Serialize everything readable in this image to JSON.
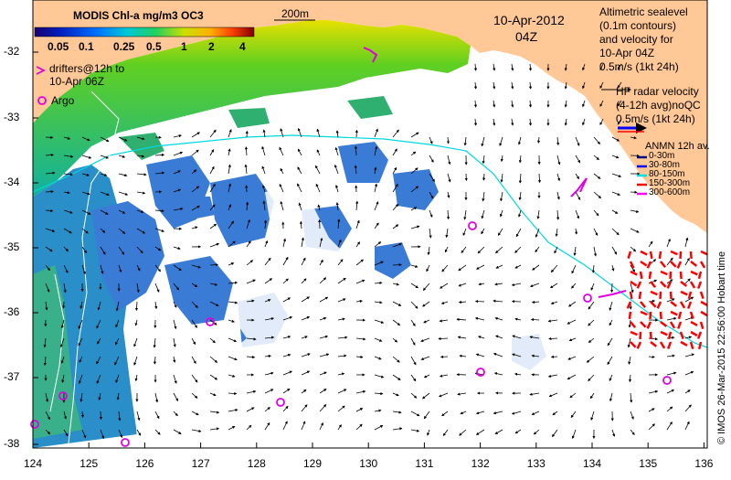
{
  "colorbar": {
    "title": "MODIS Chl-a mg/m3 OC3",
    "ticks": [
      "0.05",
      "0.1",
      "0.25",
      "0.5",
      "1",
      "2",
      "4"
    ]
  },
  "scale_bar_label": "200m",
  "date_label": "10-Apr-2012",
  "time_label": "04Z",
  "drifters_label_1": "drifters@12h to",
  "drifters_label_2": "10-Apr 06Z",
  "argo_label": "Argo",
  "altimetric_label": [
    "Altimetric sealevel",
    "(0.1m contours)",
    "and velocity for",
    "10-Apr 04Z",
    "0.5m/s (1kt 24h)"
  ],
  "hf_radar_label": [
    "HF radar velocity",
    "(4-12h avg)noQC",
    "0.5m/s (1kt 24h)"
  ],
  "anmn_legend": {
    "title": "ANMN 12h av.",
    "items": [
      {
        "label": "0-30m",
        "color": "#000080"
      },
      {
        "label": "30-80m",
        "color": "#0000ff"
      },
      {
        "label": "80-150m",
        "color": "#00e0e0"
      },
      {
        "label": "150-300m",
        "color": "#ff0000"
      },
      {
        "label": "300-600m",
        "color": "#ff00ff"
      }
    ]
  },
  "credit": "© IMOS 26-Mar-2015 22:56:00 Hobart time",
  "y_ticks": [
    "-32",
    "-33",
    "-34",
    "-35",
    "-36",
    "-37",
    "-38"
  ],
  "x_ticks": [
    "124",
    "125",
    "126",
    "127",
    "128",
    "129",
    "130",
    "131",
    "132",
    "133",
    "134",
    "135",
    "136"
  ],
  "colors": {
    "land": "#ffc896",
    "ocean_blue": "#3a7bd5",
    "coast_green": "#2fb84a",
    "argo": "#e000e0",
    "radar": "#ff0000"
  }
}
